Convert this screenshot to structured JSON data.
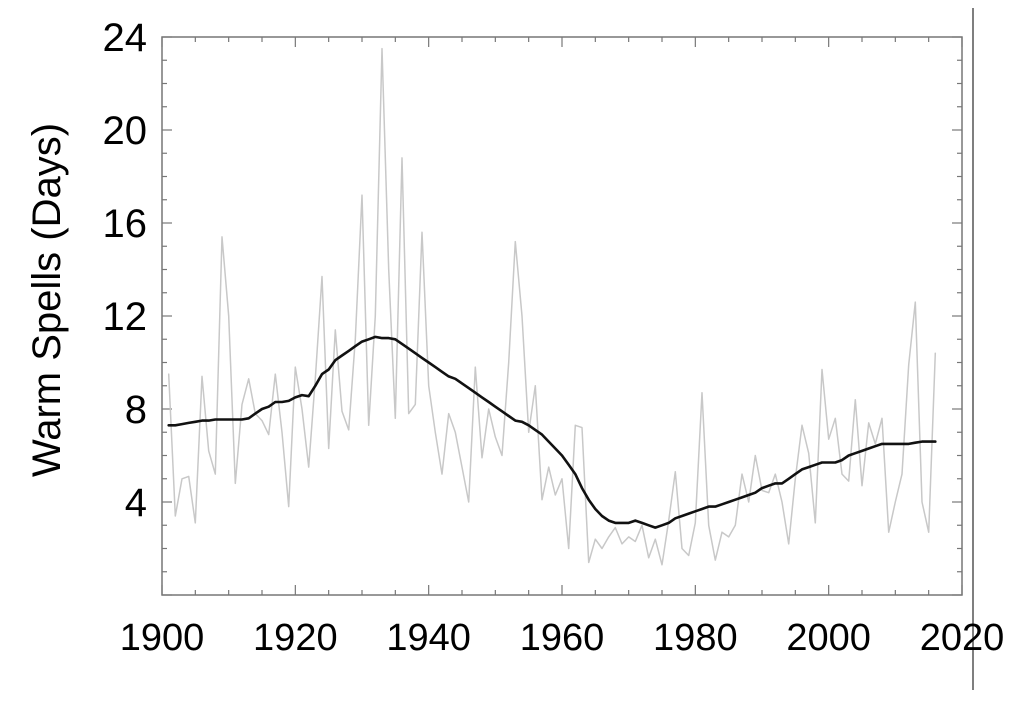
{
  "chart_data": {
    "type": "line",
    "title": "",
    "xlabel": "",
    "ylabel": "Warm Spells (Days)",
    "xlim": [
      1900,
      2020
    ],
    "ylim": [
      0,
      24
    ],
    "x_ticks": [
      "1900",
      "1920",
      "1940",
      "1960",
      "1980",
      "2000",
      "2020"
    ],
    "y_ticks": [
      "4",
      "8",
      "12",
      "16",
      "20",
      "24"
    ],
    "grid": false,
    "legend": "none",
    "series": [
      {
        "color": "#c8c8c8",
        "style": "annual",
        "x": [
          1901,
          1902,
          1903,
          1904,
          1905,
          1906,
          1907,
          1908,
          1909,
          1910,
          1911,
          1912,
          1913,
          1914,
          1915,
          1916,
          1917,
          1918,
          1919,
          1920,
          1921,
          1922,
          1923,
          1924,
          1925,
          1926,
          1927,
          1928,
          1929,
          1930,
          1931,
          1932,
          1933,
          1934,
          1935,
          1936,
          1937,
          1938,
          1939,
          1940,
          1941,
          1942,
          1943,
          1944,
          1945,
          1946,
          1947,
          1948,
          1949,
          1950,
          1951,
          1952,
          1953,
          1954,
          1955,
          1956,
          1957,
          1958,
          1959,
          1960,
          1961,
          1962,
          1963,
          1964,
          1965,
          1966,
          1967,
          1968,
          1969,
          1970,
          1971,
          1972,
          1973,
          1974,
          1975,
          1976,
          1977,
          1978,
          1979,
          1980,
          1981,
          1982,
          1983,
          1984,
          1985,
          1986,
          1987,
          1988,
          1989,
          1990,
          1991,
          1992,
          1993,
          1994,
          1995,
          1996,
          1997,
          1998,
          1999,
          2000,
          2001,
          2002,
          2003,
          2004,
          2005,
          2006,
          2007,
          2008,
          2009,
          2010,
          2011,
          2012,
          2013,
          2014,
          2015,
          2016
        ],
        "y": [
          9.5,
          3.4,
          5.0,
          5.1,
          3.1,
          9.4,
          6.2,
          5.2,
          15.4,
          12.0,
          4.8,
          8.2,
          9.3,
          7.8,
          7.5,
          6.9,
          9.5,
          7.0,
          3.8,
          9.8,
          8.0,
          5.5,
          9.3,
          13.7,
          6.3,
          11.4,
          7.9,
          7.1,
          11.0,
          17.2,
          7.3,
          12.0,
          23.5,
          14.0,
          7.6,
          18.8,
          7.8,
          8.2,
          15.6,
          9.0,
          7.0,
          5.2,
          7.8,
          7.0,
          5.5,
          4.0,
          9.8,
          5.9,
          8.0,
          6.8,
          6.0,
          10.0,
          15.2,
          12.0,
          7.0,
          9.0,
          4.1,
          5.5,
          4.3,
          5.0,
          2.0,
          7.3,
          7.2,
          1.4,
          2.4,
          2.0,
          2.5,
          2.9,
          2.2,
          2.5,
          2.3,
          3.0,
          1.6,
          2.4,
          1.3,
          3.2,
          5.3,
          2.0,
          1.7,
          3.1,
          8.7,
          3.0,
          1.5,
          2.7,
          2.5,
          3.0,
          5.2,
          4.0,
          6.0,
          4.5,
          4.4,
          5.2,
          4.0,
          2.2,
          5.0,
          7.3,
          6.1,
          3.1,
          9.7,
          6.7,
          7.6,
          5.2,
          4.9,
          8.4,
          4.7,
          7.4,
          6.5,
          7.6,
          2.7,
          4.0,
          5.2,
          9.9,
          12.6,
          4.0,
          2.7,
          10.4
        ]
      },
      {
        "color": "#111111",
        "style": "smoothed",
        "x": [
          1901,
          1902,
          1903,
          1904,
          1905,
          1906,
          1907,
          1908,
          1909,
          1910,
          1911,
          1912,
          1913,
          1914,
          1915,
          1916,
          1917,
          1918,
          1919,
          1920,
          1921,
          1922,
          1923,
          1924,
          1925,
          1926,
          1927,
          1928,
          1929,
          1930,
          1931,
          1932,
          1933,
          1934,
          1935,
          1936,
          1937,
          1938,
          1939,
          1940,
          1941,
          1942,
          1943,
          1944,
          1945,
          1946,
          1947,
          1948,
          1949,
          1950,
          1951,
          1952,
          1953,
          1954,
          1955,
          1956,
          1957,
          1958,
          1959,
          1960,
          1961,
          1962,
          1963,
          1964,
          1965,
          1966,
          1967,
          1968,
          1969,
          1970,
          1971,
          1972,
          1973,
          1974,
          1975,
          1976,
          1977,
          1978,
          1979,
          1980,
          1981,
          1982,
          1983,
          1984,
          1985,
          1986,
          1987,
          1988,
          1989,
          1990,
          1991,
          1992,
          1993,
          1994,
          1995,
          1996,
          1997,
          1998,
          1999,
          2000,
          2001,
          2002,
          2003,
          2004,
          2005,
          2006,
          2007,
          2008,
          2009,
          2010,
          2011,
          2012,
          2013,
          2014,
          2015,
          2016
        ],
        "y": [
          7.3,
          7.3,
          7.35,
          7.4,
          7.45,
          7.5,
          7.5,
          7.55,
          7.55,
          7.55,
          7.55,
          7.55,
          7.6,
          7.8,
          8.0,
          8.1,
          8.3,
          8.3,
          8.35,
          8.5,
          8.6,
          8.55,
          9.0,
          9.5,
          9.7,
          10.1,
          10.3,
          10.5,
          10.7,
          10.9,
          11.0,
          11.1,
          11.05,
          11.05,
          11.0,
          10.8,
          10.6,
          10.4,
          10.2,
          10.0,
          9.8,
          9.6,
          9.4,
          9.3,
          9.1,
          8.9,
          8.7,
          8.5,
          8.3,
          8.1,
          7.9,
          7.7,
          7.5,
          7.45,
          7.3,
          7.1,
          6.9,
          6.6,
          6.3,
          6.0,
          5.6,
          5.2,
          4.6,
          4.1,
          3.7,
          3.4,
          3.2,
          3.1,
          3.1,
          3.1,
          3.2,
          3.1,
          3.0,
          2.9,
          3.0,
          3.1,
          3.3,
          3.4,
          3.5,
          3.6,
          3.7,
          3.8,
          3.8,
          3.9,
          4.0,
          4.1,
          4.2,
          4.3,
          4.4,
          4.6,
          4.7,
          4.8,
          4.8,
          5.0,
          5.2,
          5.4,
          5.5,
          5.6,
          5.7,
          5.7,
          5.7,
          5.8,
          6.0,
          6.1,
          6.2,
          6.3,
          6.4,
          6.5,
          6.5,
          6.5,
          6.5,
          6.5,
          6.55,
          6.6,
          6.6,
          6.6
        ]
      }
    ]
  }
}
